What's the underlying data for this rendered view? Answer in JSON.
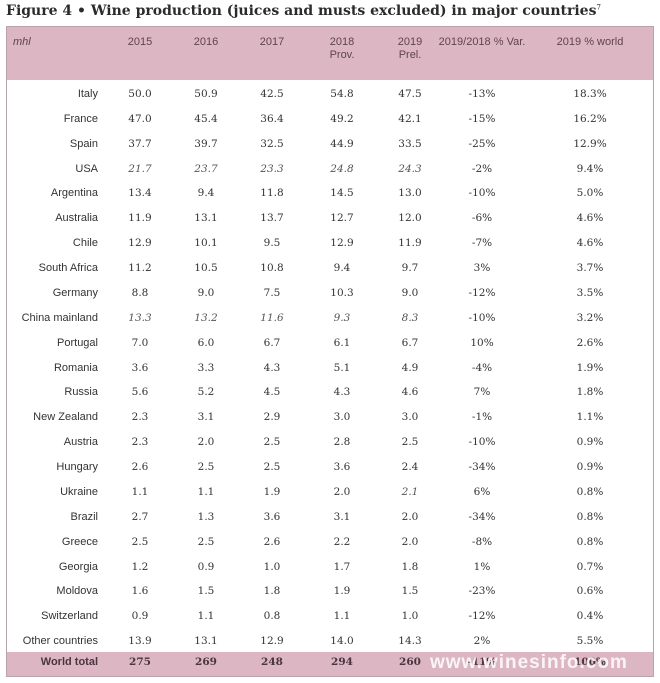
{
  "title": "Figure 4 • Wine production (juices and musts excluded) in major countries",
  "title_sup": "7",
  "unit": "mhl",
  "headers": [
    {
      "line1": "2015",
      "line2": ""
    },
    {
      "line1": "2016",
      "line2": ""
    },
    {
      "line1": "2017",
      "line2": ""
    },
    {
      "line1": "2018",
      "line2": "Prov."
    },
    {
      "line1": "2019",
      "line2": "Prel."
    },
    {
      "line1": "2019/2018 % Var.",
      "line2": ""
    },
    {
      "line1": "2019 % world",
      "line2": ""
    }
  ],
  "watermark": "www.winesinfo.com",
  "chart_data": {
    "type": "table",
    "title": "Figure 4 • Wine production (juices and musts excluded) in major countries",
    "unit": "mhl",
    "columns": [
      "2015",
      "2016",
      "2017",
      "2018 Prov.",
      "2019 Prel.",
      "2019/2018 % Var.",
      "2019 % world"
    ],
    "italic_color": "#555555",
    "rows": [
      {
        "country": "Italy",
        "values": [
          "50.0",
          "50.9",
          "42.5",
          "54.8",
          "47.5",
          "-13%",
          "18.3%"
        ],
        "italic": []
      },
      {
        "country": "France",
        "values": [
          "47.0",
          "45.4",
          "36.4",
          "49.2",
          "42.1",
          "-15%",
          "16.2%"
        ],
        "italic": []
      },
      {
        "country": "Spain",
        "values": [
          "37.7",
          "39.7",
          "32.5",
          "44.9",
          "33.5",
          "-25%",
          "12.9%"
        ],
        "italic": []
      },
      {
        "country": "USA",
        "values": [
          "21.7",
          "23.7",
          "23.3",
          "24.8",
          "24.3",
          "-2%",
          "9.4%"
        ],
        "italic": [
          0,
          1,
          2,
          3,
          4
        ]
      },
      {
        "country": "Argentina",
        "values": [
          "13.4",
          "9.4",
          "11.8",
          "14.5",
          "13.0",
          "-10%",
          "5.0%"
        ],
        "italic": []
      },
      {
        "country": "Australia",
        "values": [
          "11.9",
          "13.1",
          "13.7",
          "12.7",
          "12.0",
          "-6%",
          "4.6%"
        ],
        "italic": []
      },
      {
        "country": "Chile",
        "values": [
          "12.9",
          "10.1",
          "9.5",
          "12.9",
          "11.9",
          "-7%",
          "4.6%"
        ],
        "italic": []
      },
      {
        "country": "South Africa",
        "values": [
          "11.2",
          "10.5",
          "10.8",
          "9.4",
          "9.7",
          "3%",
          "3.7%"
        ],
        "italic": []
      },
      {
        "country": "Germany",
        "values": [
          "8.8",
          "9.0",
          "7.5",
          "10.3",
          "9.0",
          "-12%",
          "3.5%"
        ],
        "italic": []
      },
      {
        "country": "China mainland",
        "values": [
          "13.3",
          "13.2",
          "11.6",
          "9.3",
          "8.3",
          "-10%",
          "3.2%"
        ],
        "italic": [
          0,
          1,
          2,
          3,
          4
        ]
      },
      {
        "country": "Portugal",
        "values": [
          "7.0",
          "6.0",
          "6.7",
          "6.1",
          "6.7",
          "10%",
          "2.6%"
        ],
        "italic": []
      },
      {
        "country": "Romania",
        "values": [
          "3.6",
          "3.3",
          "4.3",
          "5.1",
          "4.9",
          "-4%",
          "1.9%"
        ],
        "italic": []
      },
      {
        "country": "Russia",
        "values": [
          "5.6",
          "5.2",
          "4.5",
          "4.3",
          "4.6",
          "7%",
          "1.8%"
        ],
        "italic": []
      },
      {
        "country": "New Zealand",
        "values": [
          "2.3",
          "3.1",
          "2.9",
          "3.0",
          "3.0",
          "-1%",
          "1.1%"
        ],
        "italic": []
      },
      {
        "country": "Austria",
        "values": [
          "2.3",
          "2.0",
          "2.5",
          "2.8",
          "2.5",
          "-10%",
          "0.9%"
        ],
        "italic": []
      },
      {
        "country": "Hungary",
        "values": [
          "2.6",
          "2.5",
          "2.5",
          "3.6",
          "2.4",
          "-34%",
          "0.9%"
        ],
        "italic": []
      },
      {
        "country": "Ukraine",
        "values": [
          "1.1",
          "1.1",
          "1.9",
          "2.0",
          "2.1",
          "6%",
          "0.8%"
        ],
        "italic": [
          4
        ]
      },
      {
        "country": "Brazil",
        "values": [
          "2.7",
          "1.3",
          "3.6",
          "3.1",
          "2.0",
          "-34%",
          "0.8%"
        ],
        "italic": []
      },
      {
        "country": "Greece",
        "values": [
          "2.5",
          "2.5",
          "2.6",
          "2.2",
          "2.0",
          "-8%",
          "0.8%"
        ],
        "italic": []
      },
      {
        "country": "Georgia",
        "values": [
          "1.2",
          "0.9",
          "1.0",
          "1.7",
          "1.8",
          "1%",
          "0.7%"
        ],
        "italic": []
      },
      {
        "country": "Moldova",
        "values": [
          "1.6",
          "1.5",
          "1.8",
          "1.9",
          "1.5",
          "-23%",
          "0.6%"
        ],
        "italic": []
      },
      {
        "country": "Switzerland",
        "values": [
          "0.9",
          "1.1",
          "0.8",
          "1.1",
          "1.0",
          "-12%",
          "0.4%"
        ],
        "italic": []
      },
      {
        "country": "Other countries",
        "values": [
          "13.9",
          "13.1",
          "12.9",
          "14.0",
          "14.3",
          "2%",
          "5.5%"
        ],
        "italic": []
      }
    ],
    "total": {
      "country": "World total",
      "values": [
        "275",
        "269",
        "248",
        "294",
        "260",
        "-11%",
        "100%"
      ]
    }
  }
}
